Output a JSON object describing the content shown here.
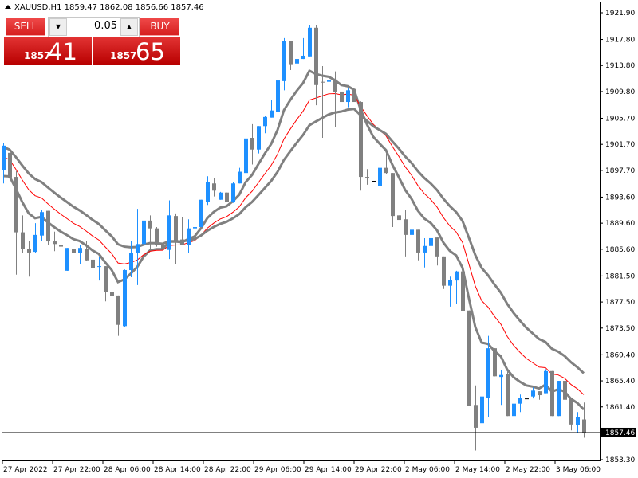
{
  "header": {
    "symbol": "XAUUSD,H1",
    "open": "1859.47",
    "high": "1862.08",
    "low": "1856.66",
    "close": "1857.46"
  },
  "trade_panel": {
    "sell_label": "SELL",
    "buy_label": "BUY",
    "lot": "0.05",
    "sell_big": "1857",
    "sell_small_digits": "41",
    "buy_big": "1857",
    "buy_small_digits": "65",
    "down_arrow": "▼",
    "up_arrow": "▲"
  },
  "colors": {
    "bull": "#1e90ff",
    "bear": "#808080",
    "ma_mid": "#ff0000",
    "ma_thick": "#808080",
    "panel": "#d62020"
  },
  "chart_data": {
    "type": "candlestick",
    "y_ticks": [
      "1921.90",
      "1917.80",
      "1913.80",
      "1909.80",
      "1905.70",
      "1901.70",
      "1897.70",
      "1893.60",
      "1889.60",
      "1885.60",
      "1881.50",
      "1877.50",
      "1873.50",
      "1869.40",
      "1865.40",
      "1861.40",
      "1853.30"
    ],
    "ylim": [
      1853.3,
      1921.9
    ],
    "current_price": "1857.46",
    "x_ticks": [
      "27 Apr 2022",
      "27 Apr 22:00",
      "28 Apr 06:00",
      "28 Apr 14:00",
      "28 Apr 22:00",
      "29 Apr 06:00",
      "29 Apr 14:00",
      "29 Apr 22:00",
      "2 May 06:00",
      "2 May 14:00",
      "2 May 22:00",
      "3 May 06:00"
    ],
    "candles_ohlc": [
      [
        1897.8,
        1901.9,
        1895.7,
        1901.5
      ],
      [
        1900.4,
        1907.0,
        1896.0,
        1896.6
      ],
      [
        1896.7,
        1897.6,
        1881.7,
        1888.2
      ],
      [
        1888.2,
        1890.8,
        1885.1,
        1885.6
      ],
      [
        1885.6,
        1886.8,
        1881.4,
        1885.1
      ],
      [
        1885.2,
        1889.6,
        1885.0,
        1887.8
      ],
      [
        1887.7,
        1891.7,
        1886.8,
        1891.3
      ],
      [
        1891.5,
        1891.5,
        1886.3,
        1886.8
      ],
      [
        1886.8,
        1888.3,
        1885.3,
        1886.4
      ],
      [
        1886.2,
        1886.4,
        1885.7,
        1886.0
      ],
      [
        1882.3,
        1885.8,
        1882.3,
        1885.8
      ],
      [
        1885.6,
        1885.6,
        1885.0,
        1885.0
      ],
      [
        1885.0,
        1886.3,
        1883.3,
        1885.8
      ],
      [
        1885.7,
        1886.9,
        1883.8,
        1883.9
      ],
      [
        1884.0,
        1884.0,
        1881.6,
        1882.7
      ],
      [
        1882.9,
        1884.5,
        1880.8,
        1883.0
      ],
      [
        1883.0,
        1883.0,
        1877.6,
        1879.0
      ],
      [
        1879.1,
        1879.5,
        1876.1,
        1878.4
      ],
      [
        1878.5,
        1878.5,
        1872.3,
        1874.0
      ],
      [
        1873.8,
        1882.5,
        1873.7,
        1882.4
      ],
      [
        1882.4,
        1886.9,
        1881.3,
        1885.0
      ],
      [
        1885.0,
        1891.8,
        1880.1,
        1886.4
      ],
      [
        1886.4,
        1891.8,
        1886.0,
        1890.0
      ],
      [
        1890.0,
        1890.8,
        1885.6,
        1888.8
      ],
      [
        1888.8,
        1889.0,
        1886.0,
        1886.3
      ],
      [
        1886.3,
        1895.5,
        1882.4,
        1885.6
      ],
      [
        1885.5,
        1893.1,
        1884.1,
        1890.8
      ],
      [
        1890.7,
        1891.1,
        1883.3,
        1886.9
      ],
      [
        1887.1,
        1890.6,
        1886.3,
        1886.3
      ],
      [
        1886.3,
        1890.2,
        1885.1,
        1888.8
      ],
      [
        1888.8,
        1891.8,
        1888.4,
        1889.0
      ],
      [
        1889.0,
        1893.2,
        1889.0,
        1893.2
      ],
      [
        1892.9,
        1896.8,
        1892.4,
        1895.9
      ],
      [
        1895.7,
        1896.5,
        1893.7,
        1894.6
      ],
      [
        1893.2,
        1894.4,
        1893.2,
        1894.3
      ],
      [
        1894.3,
        1894.3,
        1892.9,
        1892.9
      ],
      [
        1892.9,
        1895.9,
        1892.7,
        1895.7
      ],
      [
        1895.7,
        1898.1,
        1895.7,
        1897.5
      ],
      [
        1897.3,
        1906.0,
        1896.7,
        1902.6
      ],
      [
        1902.7,
        1904.8,
        1898.6,
        1900.9
      ],
      [
        1900.9,
        1904.5,
        1900.3,
        1904.5
      ],
      [
        1904.5,
        1906.0,
        1903.4,
        1905.9
      ],
      [
        1905.8,
        1908.5,
        1905.8,
        1906.9
      ],
      [
        1906.7,
        1913.0,
        1906.7,
        1911.5
      ],
      [
        1911.4,
        1918.0,
        1910.0,
        1917.5
      ],
      [
        1917.5,
        1917.5,
        1913.1,
        1914.0
      ],
      [
        1914.1,
        1917.1,
        1913.2,
        1914.8
      ],
      [
        1914.8,
        1918.0,
        1914.8,
        1915.3
      ],
      [
        1915.2,
        1920.0,
        1915.2,
        1919.6
      ],
      [
        1919.6,
        1920.0,
        1907.7,
        1910.8
      ],
      [
        1911.3,
        1913.7,
        1902.7,
        1911.3
      ],
      [
        1911.3,
        1914.8,
        1907.8,
        1911.5
      ],
      [
        1911.5,
        1912.9,
        1904.4,
        1909.7
      ],
      [
        1909.8,
        1909.8,
        1908.2,
        1908.2
      ],
      [
        1908.2,
        1910.4,
        1907.4,
        1910.0
      ],
      [
        1910.2,
        1910.2,
        1908.2,
        1908.2
      ],
      [
        1908.2,
        1908.3,
        1894.6,
        1896.7
      ],
      [
        1896.7,
        1897.9,
        1895.5,
        1896.7
      ],
      [
        1896.1,
        1896.1,
        1896.1,
        1896.1
      ],
      [
        1895.3,
        1899.9,
        1895.3,
        1898.1
      ],
      [
        1898.1,
        1900.3,
        1897.2,
        1897.3
      ],
      [
        1897.3,
        1897.3,
        1889.0,
        1890.7
      ],
      [
        1890.8,
        1890.8,
        1890.1,
        1890.1
      ],
      [
        1890.2,
        1891.7,
        1884.5,
        1887.8
      ],
      [
        1887.8,
        1889.6,
        1886.9,
        1888.6
      ],
      [
        1888.6,
        1888.6,
        1883.9,
        1885.1
      ],
      [
        1885.1,
        1887.3,
        1882.8,
        1886.1
      ],
      [
        1886.1,
        1887.8,
        1883.1,
        1887.3
      ],
      [
        1887.4,
        1887.4,
        1883.1,
        1884.5
      ],
      [
        1884.5,
        1884.5,
        1879.5,
        1880.0
      ],
      [
        1880.0,
        1881.4,
        1876.8,
        1880.9
      ],
      [
        1880.8,
        1882.3,
        1877.2,
        1882.2
      ],
      [
        1882.2,
        1882.5,
        1876.1,
        1876.1
      ],
      [
        1876.2,
        1876.2,
        1861.6,
        1861.6
      ],
      [
        1861.7,
        1864.7,
        1854.7,
        1858.2
      ],
      [
        1858.9,
        1865.2,
        1858.0,
        1863.0
      ],
      [
        1862.8,
        1872.3,
        1859.9,
        1870.4
      ],
      [
        1870.4,
        1870.4,
        1866.1,
        1866.1
      ],
      [
        1866.0,
        1867.0,
        1861.7,
        1866.3
      ],
      [
        1866.4,
        1866.8,
        1860.0,
        1860.0
      ],
      [
        1860.0,
        1861.9,
        1860.0,
        1861.9
      ],
      [
        1861.9,
        1863.3,
        1860.6,
        1862.8
      ],
      [
        1862.7,
        1862.7,
        1862.7,
        1862.7
      ],
      [
        1863.0,
        1864.4,
        1862.7,
        1863.9
      ],
      [
        1863.8,
        1863.8,
        1862.5,
        1863.2
      ],
      [
        1863.5,
        1867.2,
        1863.5,
        1866.9
      ],
      [
        1866.9,
        1866.9,
        1860.0,
        1860.0
      ],
      [
        1860.0,
        1865.4,
        1860.0,
        1865.4
      ],
      [
        1865.4,
        1865.4,
        1862.1,
        1862.5
      ],
      [
        1862.7,
        1862.7,
        1857.8,
        1858.7
      ],
      [
        1858.6,
        1860.6,
        1857.5,
        1859.8
      ],
      [
        1859.47,
        1862.08,
        1856.66,
        1857.46
      ]
    ]
  }
}
